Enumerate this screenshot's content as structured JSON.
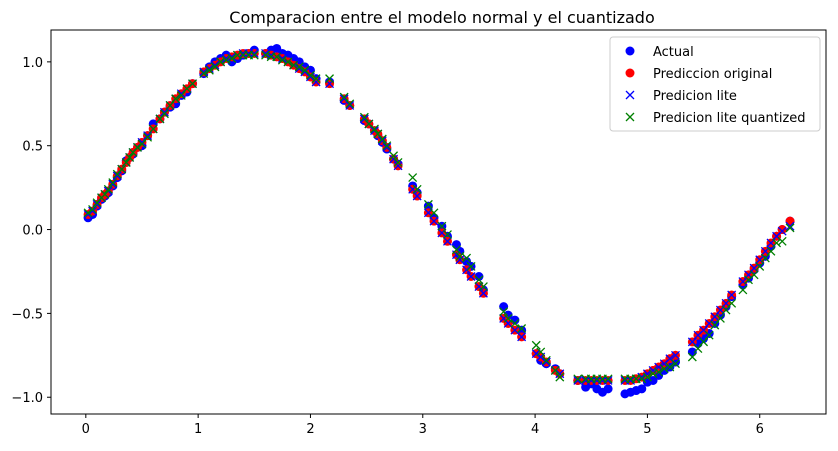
{
  "chart_data": {
    "type": "scatter",
    "title": "Comparacion entre el modelo normal y el cuantizado",
    "xlabel": "",
    "ylabel": "",
    "xlim": [
      -0.31,
      6.59
    ],
    "ylim": [
      -1.1,
      1.19
    ],
    "xticks": [
      0,
      1,
      2,
      3,
      4,
      5,
      6
    ],
    "yticks": [
      -1.0,
      -0.5,
      0.0,
      0.5,
      1.0
    ],
    "ytick_labels": [
      "−1.0",
      "−0.5",
      "0.0",
      "0.5",
      "1.0"
    ],
    "grid": false,
    "legend_position": "top-right",
    "x": [
      0.02,
      0.06,
      0.1,
      0.14,
      0.17,
      0.2,
      0.24,
      0.28,
      0.32,
      0.36,
      0.39,
      0.42,
      0.46,
      0.5,
      0.55,
      0.6,
      0.66,
      0.7,
      0.75,
      0.8,
      0.85,
      0.9,
      0.95,
      1.05,
      1.1,
      1.15,
      1.2,
      1.25,
      1.3,
      1.35,
      1.4,
      1.45,
      1.5,
      1.6,
      1.65,
      1.7,
      1.75,
      1.8,
      1.85,
      1.9,
      1.95,
      2.0,
      2.05,
      2.17,
      2.3,
      2.35,
      2.48,
      2.52,
      2.57,
      2.6,
      2.64,
      2.68,
      2.74,
      2.78,
      2.91,
      2.95,
      3.05,
      3.1,
      3.17,
      3.22,
      3.3,
      3.33,
      3.39,
      3.43,
      3.5,
      3.54,
      3.72,
      3.76,
      3.82,
      3.88,
      4.01,
      4.05,
      4.1,
      4.18,
      4.22,
      4.38,
      4.45,
      4.5,
      4.55,
      4.6,
      4.65,
      4.8,
      4.85,
      4.9,
      4.95,
      5.0,
      5.05,
      5.1,
      5.15,
      5.2,
      5.25,
      5.4,
      5.45,
      5.5,
      5.55,
      5.6,
      5.65,
      5.7,
      5.75,
      5.85,
      5.9,
      5.95,
      6.0,
      6.05,
      6.1,
      6.15,
      6.2,
      6.27
    ],
    "series": [
      {
        "name": "Actual",
        "marker": "circle",
        "color": "#0000ff",
        "values": [
          0.07,
          0.09,
          0.14,
          0.18,
          0.2,
          0.22,
          0.26,
          0.31,
          0.35,
          0.41,
          0.43,
          0.45,
          0.49,
          0.5,
          0.56,
          0.63,
          0.66,
          0.7,
          0.73,
          0.75,
          0.8,
          0.82,
          0.87,
          0.93,
          0.97,
          1.0,
          1.02,
          1.04,
          1.0,
          1.02,
          1.04,
          1.05,
          1.07,
          1.05,
          1.07,
          1.08,
          1.05,
          1.04,
          1.02,
          1.0,
          0.97,
          0.95,
          0.9,
          0.88,
          0.77,
          0.74,
          0.65,
          0.63,
          0.59,
          0.56,
          0.52,
          0.48,
          0.42,
          0.39,
          0.26,
          0.22,
          0.14,
          0.07,
          0.02,
          -0.04,
          -0.09,
          -0.13,
          -0.19,
          -0.22,
          -0.28,
          -0.36,
          -0.46,
          -0.51,
          -0.54,
          -0.6,
          -0.74,
          -0.78,
          -0.8,
          -0.83,
          -0.86,
          -0.9,
          -0.94,
          -0.92,
          -0.95,
          -0.97,
          -0.95,
          -0.98,
          -0.97,
          -0.96,
          -0.95,
          -0.91,
          -0.9,
          -0.87,
          -0.84,
          -0.82,
          -0.79,
          -0.73,
          -0.68,
          -0.65,
          -0.62,
          -0.56,
          -0.51,
          -0.46,
          -0.4,
          -0.33,
          -0.29,
          -0.24,
          -0.2,
          -0.16,
          -0.1,
          -0.04,
          0.0,
          0.05
        ]
      },
      {
        "name": "Prediccion original",
        "marker": "circle",
        "color": "#ff0000",
        "values": [
          0.09,
          0.11,
          0.15,
          0.19,
          0.21,
          0.23,
          0.27,
          0.32,
          0.36,
          0.4,
          0.43,
          0.46,
          0.49,
          0.52,
          0.56,
          0.6,
          0.66,
          0.7,
          0.74,
          0.78,
          0.81,
          0.84,
          0.87,
          0.94,
          0.96,
          0.98,
          1.0,
          1.02,
          1.03,
          1.04,
          1.05,
          1.05,
          1.05,
          1.05,
          1.04,
          1.03,
          1.02,
          1.0,
          0.98,
          0.96,
          0.94,
          0.91,
          0.88,
          0.87,
          0.78,
          0.74,
          0.66,
          0.63,
          0.59,
          0.57,
          0.53,
          0.49,
          0.42,
          0.38,
          0.24,
          0.2,
          0.1,
          0.05,
          -0.02,
          -0.07,
          -0.15,
          -0.18,
          -0.24,
          -0.28,
          -0.34,
          -0.38,
          -0.53,
          -0.56,
          -0.6,
          -0.64,
          -0.74,
          -0.76,
          -0.79,
          -0.84,
          -0.86,
          -0.9,
          -0.9,
          -0.9,
          -0.9,
          -0.9,
          -0.9,
          -0.9,
          -0.9,
          -0.89,
          -0.88,
          -0.86,
          -0.84,
          -0.82,
          -0.8,
          -0.77,
          -0.75,
          -0.67,
          -0.63,
          -0.6,
          -0.56,
          -0.52,
          -0.48,
          -0.44,
          -0.39,
          -0.31,
          -0.27,
          -0.23,
          -0.18,
          -0.13,
          -0.08,
          -0.04,
          0.0,
          0.05
        ]
      },
      {
        "name": "Predicion lite",
        "marker": "x",
        "color": "#0000ff",
        "values": [
          0.09,
          0.11,
          0.15,
          0.19,
          0.21,
          0.23,
          0.27,
          0.32,
          0.36,
          0.4,
          0.43,
          0.46,
          0.49,
          0.52,
          0.56,
          0.6,
          0.66,
          0.7,
          0.74,
          0.78,
          0.81,
          0.84,
          0.87,
          0.94,
          0.96,
          0.98,
          1.0,
          1.02,
          1.03,
          1.04,
          1.05,
          1.05,
          1.05,
          1.05,
          1.04,
          1.03,
          1.02,
          1.0,
          0.98,
          0.96,
          0.94,
          0.91,
          0.88,
          0.87,
          0.78,
          0.74,
          0.66,
          0.63,
          0.59,
          0.57,
          0.53,
          0.49,
          0.42,
          0.38,
          0.24,
          0.2,
          0.1,
          0.05,
          -0.02,
          -0.07,
          -0.15,
          -0.18,
          -0.24,
          -0.28,
          -0.34,
          -0.38,
          -0.53,
          -0.56,
          -0.6,
          -0.64,
          -0.74,
          -0.76,
          -0.79,
          -0.84,
          -0.86,
          -0.9,
          -0.9,
          -0.9,
          -0.9,
          -0.9,
          -0.9,
          -0.9,
          -0.9,
          -0.89,
          -0.88,
          -0.86,
          -0.84,
          -0.82,
          -0.8,
          -0.77,
          -0.75,
          -0.67,
          -0.63,
          -0.6,
          -0.56,
          -0.52,
          -0.48,
          -0.44,
          -0.39,
          -0.31,
          -0.27,
          -0.23,
          -0.18,
          -0.13,
          -0.08,
          -0.04,
          -0.01,
          0.02
        ]
      },
      {
        "name": "Predicion lite quantized",
        "marker": "x",
        "color": "#008000",
        "values": [
          0.1,
          0.12,
          0.16,
          0.19,
          0.21,
          0.24,
          0.28,
          0.33,
          0.36,
          0.4,
          0.43,
          0.46,
          0.49,
          0.51,
          0.55,
          0.6,
          0.66,
          0.69,
          0.74,
          0.78,
          0.8,
          0.84,
          0.87,
          0.93,
          0.95,
          0.97,
          1.0,
          1.01,
          1.02,
          1.04,
          1.04,
          1.04,
          1.04,
          1.04,
          1.03,
          1.03,
          1.01,
          1.0,
          0.98,
          0.97,
          0.95,
          0.92,
          0.9,
          0.9,
          0.79,
          0.75,
          0.67,
          0.63,
          0.6,
          0.57,
          0.54,
          0.5,
          0.44,
          0.4,
          0.31,
          0.24,
          0.15,
          0.1,
          0.02,
          -0.03,
          -0.12,
          -0.16,
          -0.17,
          -0.22,
          -0.3,
          -0.34,
          -0.49,
          -0.53,
          -0.56,
          -0.59,
          -0.69,
          -0.73,
          -0.78,
          -0.84,
          -0.88,
          -0.89,
          -0.89,
          -0.89,
          -0.89,
          -0.89,
          -0.89,
          -0.89,
          -0.89,
          -0.89,
          -0.89,
          -0.88,
          -0.86,
          -0.85,
          -0.83,
          -0.82,
          -0.8,
          -0.76,
          -0.71,
          -0.67,
          -0.63,
          -0.57,
          -0.53,
          -0.48,
          -0.44,
          -0.36,
          -0.3,
          -0.27,
          -0.22,
          -0.17,
          -0.13,
          -0.08,
          -0.07,
          0.01
        ]
      }
    ]
  }
}
